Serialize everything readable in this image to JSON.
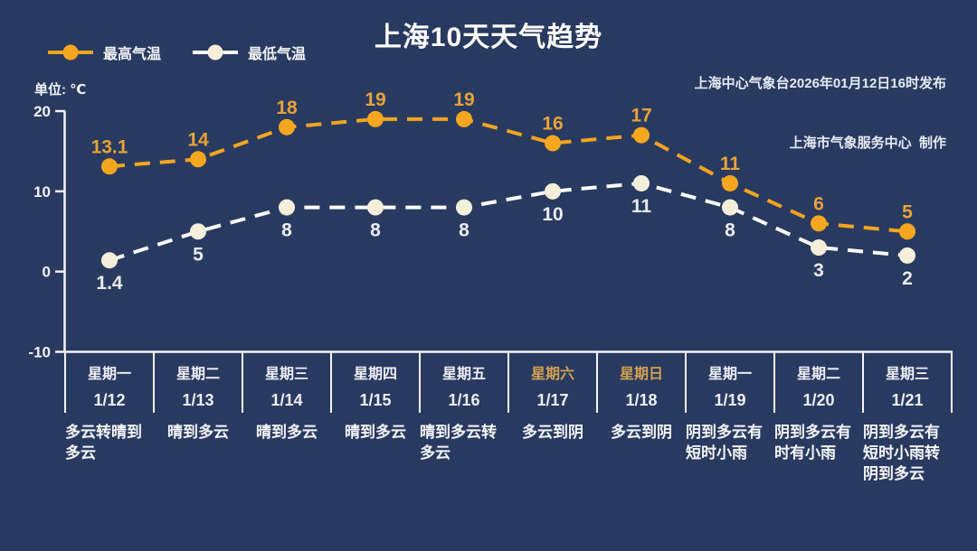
{
  "header": {
    "source_line1": "上海中心气象台2026年01月12日16时发布",
    "source_line2": "上海市气象服务中心  制作",
    "unit_label": "单位: ℃"
  },
  "legend": [
    {
      "label": "最高气温",
      "line_color": "#F3A51F",
      "marker_color": "#F5A71F"
    },
    {
      "label": "最低气温",
      "line_color": "#FFFFFF",
      "marker_color": "#F5EEDA"
    }
  ],
  "colors": {
    "background": "#293A60",
    "axis": "#F2F4F8",
    "weekend_label": "#D4A24E",
    "high_series": "#F3A51F",
    "low_series": "#FFFFFF"
  },
  "chart_data": {
    "type": "line",
    "title": "上海10天天气趋势",
    "line_style": "dashed",
    "grid": false,
    "legend_position": "top-left",
    "xlabel": "",
    "ylabel": "单位: ℃",
    "y_axis": {
      "unit": "℃",
      "ticks": [
        20,
        10,
        0,
        -10
      ],
      "min": -10,
      "max": 20
    },
    "categories": [
      {
        "weekday": "星期一",
        "date": "1/12",
        "weather": "多云转晴到多云",
        "weekend": false
      },
      {
        "weekday": "星期二",
        "date": "1/13",
        "weather": "晴到多云",
        "weekend": false
      },
      {
        "weekday": "星期三",
        "date": "1/14",
        "weather": "晴到多云",
        "weekend": false
      },
      {
        "weekday": "星期四",
        "date": "1/15",
        "weather": "晴到多云",
        "weekend": false
      },
      {
        "weekday": "星期五",
        "date": "1/16",
        "weather": "晴到多云转多云",
        "weekend": false
      },
      {
        "weekday": "星期六",
        "date": "1/17",
        "weather": "多云到阴",
        "weekend": true
      },
      {
        "weekday": "星期日",
        "date": "1/18",
        "weather": "多云到阴",
        "weekend": true
      },
      {
        "weekday": "星期一",
        "date": "1/19",
        "weather": "阴到多云有短时小雨",
        "weekend": false
      },
      {
        "weekday": "星期二",
        "date": "1/20",
        "weather": "阴到多云有时有小雨",
        "weekend": false
      },
      {
        "weekday": "星期三",
        "date": "1/21",
        "weather": "阴到多云有短时小雨转阴到多云",
        "weekend": false
      }
    ],
    "series": [
      {
        "name": "最高气温",
        "values": [
          13.1,
          14,
          18,
          19,
          19,
          16,
          17,
          11,
          6,
          5
        ],
        "line_color": "#F3A51F",
        "marker_color": "#F5A71F",
        "label_color": "#E9A238",
        "label_position": "above"
      },
      {
        "name": "最低气温",
        "values": [
          1.4,
          5,
          8,
          8,
          8,
          10,
          11,
          8,
          3,
          2
        ],
        "line_color": "#FFFFFF",
        "marker_color": "#F5EEDA",
        "label_color": "#ECEDF2",
        "label_position": "below"
      }
    ]
  }
}
